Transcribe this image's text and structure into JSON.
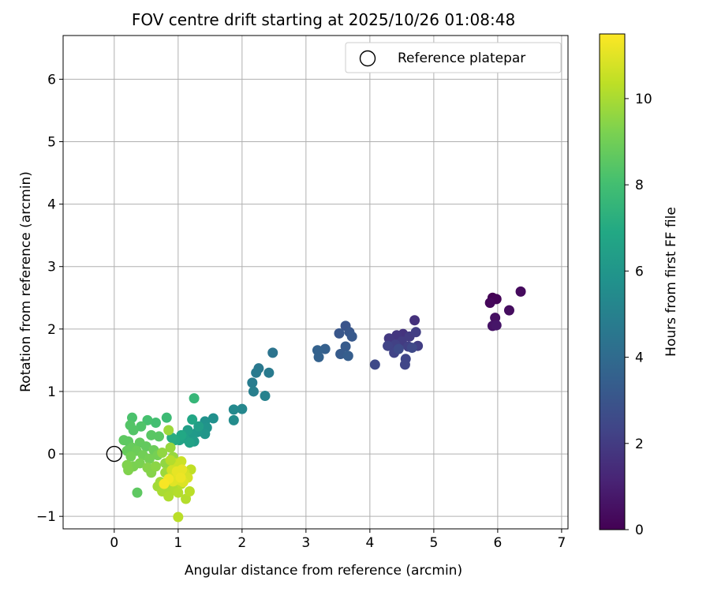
{
  "chart_data": {
    "type": "scatter",
    "title": "FOV centre drift starting at 2025/10/26 01:08:48",
    "xlabel": "Angular distance from reference (arcmin)",
    "ylabel": "Rotation from reference (arcmin)",
    "xlim": [
      -0.8,
      7.1
    ],
    "ylim": [
      -1.2,
      6.7
    ],
    "xticks": [
      0,
      1,
      2,
      3,
      4,
      5,
      6,
      7
    ],
    "yticks": [
      -1,
      0,
      1,
      2,
      3,
      4,
      5,
      6
    ],
    "grid": true,
    "legend": {
      "position": "top-right",
      "entries": [
        "Reference platepar"
      ]
    },
    "reference": {
      "x": 0,
      "y": 0,
      "label": "Reference platepar"
    },
    "colorbar": {
      "label": "Hours from first FF file",
      "min": 0,
      "max": 11.5,
      "ticks": [
        0,
        2,
        4,
        6,
        8,
        10
      ],
      "colormap": "viridis"
    },
    "points": [
      [
        5.92,
        2.5,
        0.0
      ],
      [
        5.98,
        2.48,
        0.1
      ],
      [
        5.88,
        2.42,
        0.2
      ],
      [
        6.36,
        2.6,
        0.3
      ],
      [
        6.18,
        2.3,
        0.4
      ],
      [
        5.96,
        2.18,
        0.5
      ],
      [
        5.92,
        2.05,
        0.6
      ],
      [
        5.98,
        2.06,
        0.7
      ],
      [
        4.7,
        2.14,
        1.6
      ],
      [
        4.52,
        1.92,
        1.7
      ],
      [
        4.42,
        1.9,
        1.8
      ],
      [
        4.3,
        1.85,
        1.9
      ],
      [
        4.5,
        1.8,
        2.0
      ],
      [
        4.62,
        1.88,
        2.0
      ],
      [
        4.72,
        1.95,
        2.1
      ],
      [
        4.75,
        1.73,
        2.1
      ],
      [
        4.6,
        1.72,
        2.2
      ],
      [
        4.4,
        1.75,
        2.2
      ],
      [
        4.28,
        1.73,
        2.3
      ],
      [
        4.38,
        1.62,
        2.3
      ],
      [
        4.56,
        1.52,
        2.4
      ],
      [
        4.55,
        1.43,
        2.4
      ],
      [
        4.08,
        1.43,
        2.5
      ],
      [
        4.66,
        1.7,
        2.5
      ],
      [
        4.45,
        1.68,
        2.6
      ],
      [
        3.62,
        2.05,
        3.0
      ],
      [
        3.52,
        1.93,
        3.1
      ],
      [
        3.68,
        1.95,
        3.1
      ],
      [
        3.72,
        1.88,
        3.2
      ],
      [
        3.62,
        1.72,
        3.3
      ],
      [
        3.54,
        1.6,
        3.3
      ],
      [
        3.66,
        1.57,
        3.4
      ],
      [
        3.3,
        1.68,
        3.5
      ],
      [
        3.18,
        1.66,
        3.6
      ],
      [
        3.2,
        1.55,
        3.6
      ],
      [
        2.48,
        1.62,
        4.4
      ],
      [
        2.26,
        1.37,
        4.6
      ],
      [
        2.22,
        1.3,
        4.7
      ],
      [
        2.42,
        1.3,
        4.7
      ],
      [
        2.16,
        1.14,
        4.8
      ],
      [
        2.18,
        1.0,
        4.9
      ],
      [
        2.36,
        0.93,
        5.0
      ],
      [
        2.0,
        0.72,
        5.3
      ],
      [
        1.87,
        0.71,
        5.4
      ],
      [
        1.87,
        0.54,
        5.5
      ],
      [
        1.55,
        0.57,
        5.7
      ],
      [
        1.42,
        0.52,
        5.8
      ],
      [
        1.45,
        0.42,
        5.9
      ],
      [
        1.42,
        0.32,
        6.0
      ],
      [
        1.3,
        0.35,
        6.1
      ],
      [
        1.22,
        0.3,
        6.2
      ],
      [
        1.25,
        0.2,
        6.3
      ],
      [
        1.15,
        0.38,
        6.4
      ],
      [
        1.32,
        0.44,
        6.4
      ],
      [
        1.1,
        0.25,
        6.5
      ],
      [
        1.02,
        0.22,
        6.6
      ],
      [
        1.18,
        0.18,
        6.6
      ],
      [
        1.22,
        0.55,
        6.8
      ],
      [
        1.05,
        0.3,
        6.9
      ],
      [
        0.95,
        0.22,
        7.0
      ],
      [
        0.9,
        0.26,
        7.1
      ],
      [
        1.25,
        0.89,
        7.6
      ],
      [
        0.82,
        0.58,
        7.8
      ],
      [
        0.65,
        0.5,
        8.0
      ],
      [
        0.52,
        0.54,
        8.1
      ],
      [
        0.28,
        0.58,
        8.2
      ],
      [
        0.42,
        0.44,
        8.3
      ],
      [
        0.25,
        0.46,
        8.4
      ],
      [
        0.3,
        0.38,
        8.4
      ],
      [
        0.58,
        0.3,
        8.5
      ],
      [
        0.7,
        0.28,
        8.5
      ],
      [
        0.15,
        0.22,
        8.6
      ],
      [
        0.22,
        0.2,
        8.6
      ],
      [
        0.4,
        0.18,
        8.7
      ],
      [
        0.5,
        0.12,
        8.7
      ],
      [
        0.28,
        0.1,
        8.8
      ],
      [
        0.2,
        0.05,
        8.8
      ],
      [
        0.35,
        0.05,
        8.9
      ],
      [
        0.62,
        0.06,
        8.9
      ],
      [
        0.45,
        -0.02,
        9.0
      ],
      [
        0.26,
        -0.04,
        9.0
      ],
      [
        0.55,
        -0.08,
        9.1
      ],
      [
        0.68,
        -0.02,
        9.1
      ],
      [
        0.4,
        -0.15,
        9.2
      ],
      [
        0.3,
        -0.2,
        9.2
      ],
      [
        0.2,
        -0.18,
        9.3
      ],
      [
        0.22,
        -0.26,
        9.3
      ],
      [
        0.52,
        -0.22,
        9.4
      ],
      [
        0.58,
        -0.3,
        9.4
      ],
      [
        0.65,
        -0.2,
        9.5
      ],
      [
        0.36,
        -0.62,
        8.6
      ],
      [
        0.8,
        -0.15,
        9.6
      ],
      [
        0.75,
        0.02,
        9.6
      ],
      [
        0.88,
        0.1,
        9.7
      ],
      [
        0.92,
        -0.05,
        9.7
      ],
      [
        0.85,
        0.38,
        9.8
      ],
      [
        0.8,
        -0.3,
        9.8
      ],
      [
        0.72,
        -0.45,
        9.9
      ],
      [
        0.68,
        -0.52,
        9.9
      ],
      [
        0.75,
        -0.6,
        10.0
      ],
      [
        0.88,
        -0.55,
        10.0
      ],
      [
        0.85,
        -0.68,
        10.1
      ],
      [
        0.95,
        -0.58,
        10.1
      ],
      [
        1.0,
        -0.62,
        10.2
      ],
      [
        1.12,
        -0.72,
        10.2
      ],
      [
        1.18,
        -0.6,
        10.3
      ],
      [
        1.05,
        -0.48,
        10.3
      ],
      [
        1.2,
        -0.25,
        10.4
      ],
      [
        0.95,
        -0.15,
        10.5
      ],
      [
        1.05,
        -0.12,
        10.6
      ],
      [
        1.0,
        -0.2,
        10.6
      ],
      [
        0.9,
        -0.26,
        10.7
      ],
      [
        1.1,
        -0.3,
        10.7
      ],
      [
        1.15,
        -0.38,
        10.8
      ],
      [
        0.95,
        -0.35,
        10.8
      ],
      [
        1.02,
        -0.42,
        10.9
      ],
      [
        1.08,
        -0.45,
        10.9
      ],
      [
        0.92,
        -0.44,
        11.0
      ],
      [
        1.0,
        -0.35,
        11.0
      ],
      [
        1.06,
        -0.25,
        11.1
      ],
      [
        0.98,
        -0.28,
        11.1
      ],
      [
        1.04,
        -0.38,
        11.2
      ],
      [
        0.88,
        -0.1,
        10.2
      ],
      [
        1.0,
        -1.01,
        10.3
      ],
      [
        0.85,
        -0.4,
        11.3
      ],
      [
        0.78,
        -0.48,
        11.4
      ]
    ]
  }
}
